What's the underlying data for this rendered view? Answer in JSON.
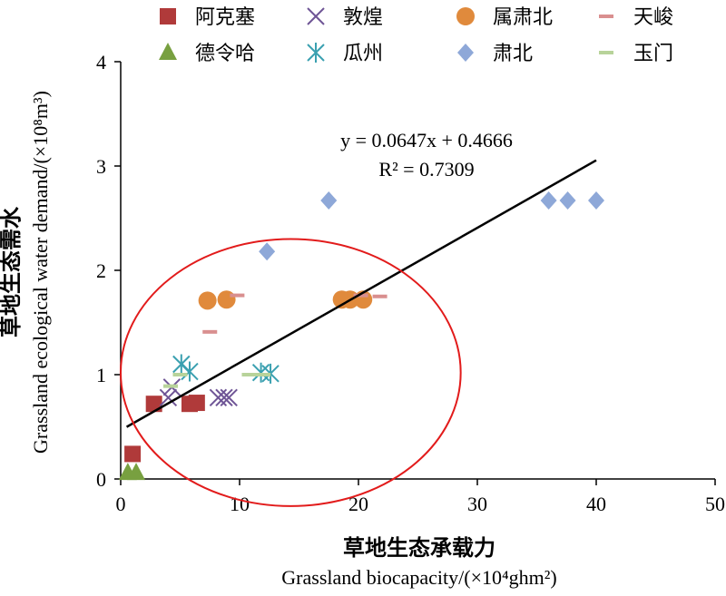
{
  "chart_data": {
    "type": "scatter",
    "xlabel_cn": "草地生态承载力",
    "xlabel_en": "Grassland biocapacity/(×10⁴ghm²)",
    "ylabel_cn": "草地生态需水",
    "ylabel_en": "Grassland ecological water demand/(×10⁸m³)",
    "xlim": [
      0,
      50
    ],
    "ylim": [
      0,
      4
    ],
    "xticks": [
      0,
      10,
      20,
      30,
      40,
      50
    ],
    "yticks": [
      0,
      1,
      2,
      3,
      4
    ],
    "legend_position": "top",
    "series": [
      {
        "name": "阿克塞",
        "marker": "square",
        "color": "#b03a3a",
        "points": [
          [
            1.0,
            0.24
          ],
          [
            2.8,
            0.72
          ],
          [
            5.8,
            0.72
          ],
          [
            6.4,
            0.73
          ]
        ]
      },
      {
        "name": "敦煌",
        "marker": "x",
        "color": "#6f5596",
        "points": [
          [
            4.0,
            0.78
          ],
          [
            4.3,
            0.88
          ],
          [
            8.2,
            0.78
          ],
          [
            8.7,
            0.78
          ],
          [
            9.1,
            0.78
          ]
        ]
      },
      {
        "name": "属肃北",
        "marker": "circle",
        "color": "#e08a3c",
        "points": [
          [
            7.3,
            1.71
          ],
          [
            8.9,
            1.72
          ],
          [
            18.6,
            1.72
          ],
          [
            19.3,
            1.72
          ],
          [
            20.4,
            1.72
          ]
        ]
      },
      {
        "name": "天峻",
        "marker": "dash",
        "color": "#d98f8f",
        "points": [
          [
            7.5,
            1.41
          ],
          [
            9.8,
            1.76
          ],
          [
            20.2,
            1.76
          ],
          [
            21.8,
            1.75
          ]
        ]
      },
      {
        "name": "德令哈",
        "marker": "triangle",
        "color": "#78a040",
        "points": [
          [
            0.6,
            0.06
          ],
          [
            1.3,
            0.06
          ]
        ]
      },
      {
        "name": "瓜州",
        "marker": "asterisk",
        "color": "#3aa0b0",
        "points": [
          [
            5.1,
            1.1
          ],
          [
            5.8,
            1.03
          ],
          [
            11.8,
            1.02
          ],
          [
            12.6,
            1.01
          ]
        ]
      },
      {
        "name": "肃北",
        "marker": "diamond",
        "color": "#8ea8d8",
        "points": [
          [
            12.3,
            2.18
          ],
          [
            17.5,
            2.67
          ],
          [
            36.0,
            2.67
          ],
          [
            37.6,
            2.67
          ],
          [
            40.0,
            2.67
          ]
        ]
      },
      {
        "name": "玉门",
        "marker": "dash",
        "color": "#b8d39a",
        "points": [
          [
            4.2,
            0.89
          ],
          [
            5.0,
            1.0
          ],
          [
            10.8,
            1.0
          ],
          [
            12.0,
            1.0
          ]
        ]
      }
    ],
    "trendline": {
      "slope": 0.0647,
      "intercept": 0.4666,
      "x_range": [
        0.5,
        40.0
      ],
      "color": "#000000",
      "equation_label": "y = 0.0647x + 0.4666",
      "r2_label": "R² = 0.7309"
    },
    "annotation_ellipse": {
      "center": [
        14.3,
        1.02
      ],
      "radius_x": 14.3,
      "radius_y": 1.28,
      "color": "#e21b1b"
    }
  }
}
